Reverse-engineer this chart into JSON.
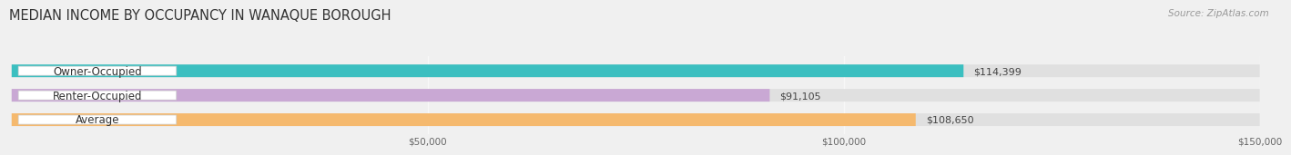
{
  "title": "MEDIAN INCOME BY OCCUPANCY IN WANAQUE BOROUGH",
  "source": "Source: ZipAtlas.com",
  "categories": [
    "Owner-Occupied",
    "Renter-Occupied",
    "Average"
  ],
  "values": [
    114399,
    91105,
    108650
  ],
  "bar_colors": [
    "#3bbfc0",
    "#c9a8d4",
    "#f5b96e"
  ],
  "bar_labels": [
    "$114,399",
    "$91,105",
    "$108,650"
  ],
  "xlim": [
    0,
    150000
  ],
  "xticks": [
    0,
    50000,
    100000,
    150000
  ],
  "xtick_labels": [
    "",
    "$50,000",
    "$100,000",
    "$150,000"
  ],
  "background_color": "#f0f0f0",
  "bar_bg_color": "#e0e0e0",
  "title_fontsize": 10.5,
  "label_fontsize": 8.5,
  "bar_height": 0.52
}
